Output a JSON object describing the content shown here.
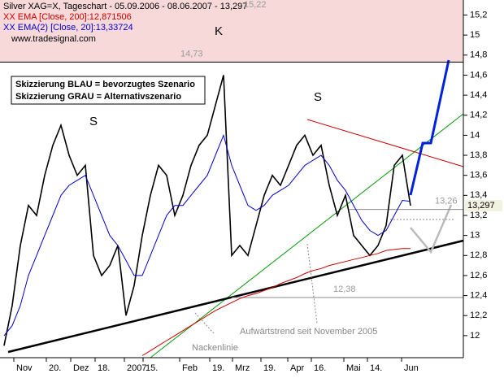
{
  "chart_data": {
    "type": "line",
    "title": "Silver XAG=X, Tageschart - 05.09.2006 - 08.06.2007 - 13,297",
    "source": "www.tradesignal.com",
    "ylim": [
      11.78,
      15.35
    ],
    "yticks": [
      12,
      {
        "value": 12.2,
        "label": "12,2"
      },
      {
        "value": 12.4,
        "label": "12,4"
      },
      {
        "value": 12.6,
        "label": "12,6"
      },
      {
        "value": 12.8,
        "label": "12,8"
      },
      13,
      {
        "value": 13.2,
        "label": "13,2"
      },
      {
        "value": 13.4,
        "label": "13,4"
      },
      {
        "value": 13.6,
        "label": "13,6"
      },
      {
        "value": 13.8,
        "label": "13,8"
      },
      14,
      {
        "value": 14.2,
        "label": "14,2"
      },
      {
        "value": 14.4,
        "label": "14,4"
      },
      {
        "value": 14.6,
        "label": "14,6"
      },
      {
        "value": 14.8,
        "label": "14,8"
      },
      15,
      {
        "value": 15.2,
        "label": "15,2"
      }
    ],
    "xlim": [
      -0.5,
      56.5
    ],
    "xticks": [
      {
        "value": 1.2,
        "label": "Nov"
      },
      {
        "value": 5.2,
        "label": "20."
      },
      {
        "value": 8.2,
        "label": "Dez"
      },
      {
        "value": 11.2,
        "label": "18."
      },
      {
        "value": 14.8,
        "label": "2007"
      },
      {
        "value": 17.1,
        "label": "15."
      },
      {
        "value": 21.6,
        "label": "Feb"
      },
      {
        "value": 25.3,
        "label": "19."
      },
      {
        "value": 28.1,
        "label": "Mrz"
      },
      {
        "value": 31.6,
        "label": "19."
      },
      {
        "value": 34.9,
        "label": "Apr"
      },
      {
        "value": 37.8,
        "label": "16."
      },
      {
        "value": 41.8,
        "label": "Mai"
      },
      {
        "value": 44.7,
        "label": "14."
      },
      {
        "value": 48.9,
        "label": "Jun"
      }
    ],
    "series": [
      {
        "color": "#000000",
        "values": [
          11.9,
          12.3,
          12.9,
          13.3,
          13.2,
          13.6,
          13.9,
          14.1,
          13.8,
          13.6,
          13.7,
          12.8,
          12.6,
          12.7,
          12.9,
          12.2,
          12.5,
          13.0,
          13.4,
          13.7,
          13.6,
          13.2,
          13.4,
          13.7,
          13.9,
          14.0,
          14.3,
          14.6,
          12.8,
          12.9,
          12.8,
          13.1,
          13.4,
          13.6,
          13.5,
          13.7,
          13.9,
          14.0,
          13.8,
          13.9,
          13.5,
          13.2,
          13.4,
          13.0,
          12.9,
          12.8,
          12.9,
          13.1,
          13.7,
          13.8,
          13.297
        ]
      },
      {
        "name": "XX EMA(2) [Close, 20]:13,33724",
        "color": "#0000cc",
        "values": [
          12.0,
          12.1,
          12.3,
          12.6,
          12.8,
          13.0,
          13.2,
          13.4,
          13.5,
          13.55,
          13.6,
          13.4,
          13.2,
          13.0,
          12.9,
          12.75,
          12.6,
          12.6,
          12.8,
          13.0,
          13.2,
          13.3,
          13.3,
          13.4,
          13.5,
          13.6,
          13.8,
          14.0,
          13.7,
          13.5,
          13.3,
          13.25,
          13.3,
          13.4,
          13.45,
          13.5,
          13.6,
          13.7,
          13.75,
          13.8,
          13.7,
          13.55,
          13.45,
          13.3,
          13.15,
          13.05,
          13.0,
          13.05,
          13.2,
          13.35,
          13.34
        ]
      },
      {
        "name": "XX EMA [Close, 200]:12,871506",
        "color": "#cc0000",
        "values": [
          null,
          null,
          null,
          null,
          null,
          null,
          null,
          null,
          null,
          null,
          null,
          null,
          null,
          null,
          null,
          null,
          null,
          11.8,
          11.85,
          11.9,
          11.95,
          12.0,
          12.05,
          12.1,
          12.15,
          12.2,
          12.25,
          12.29,
          12.33,
          12.37,
          12.4,
          12.42,
          12.45,
          12.48,
          12.52,
          12.55,
          12.58,
          12.62,
          12.65,
          12.67,
          12.7,
          12.72,
          12.74,
          12.76,
          12.78,
          12.8,
          12.82,
          12.85,
          12.86,
          12.87,
          12.87
        ]
      }
    ],
    "last_price_label": "13,297",
    "levels": [
      {
        "value": 15.22,
        "label": "15,22"
      },
      {
        "value": 14.73,
        "label": "14,73"
      },
      {
        "value": 13.26,
        "label": "13,26"
      },
      {
        "value": 12.38,
        "label": "12,38"
      }
    ],
    "annotations": [
      "K",
      "S",
      "S",
      "Skizzierung BLAU = bevorzugtes Szenario",
      "Skizzierung GRAU = Alternativszenario",
      "Aufwärtstrend seit November 2005",
      "Nackenlinie"
    ]
  }
}
